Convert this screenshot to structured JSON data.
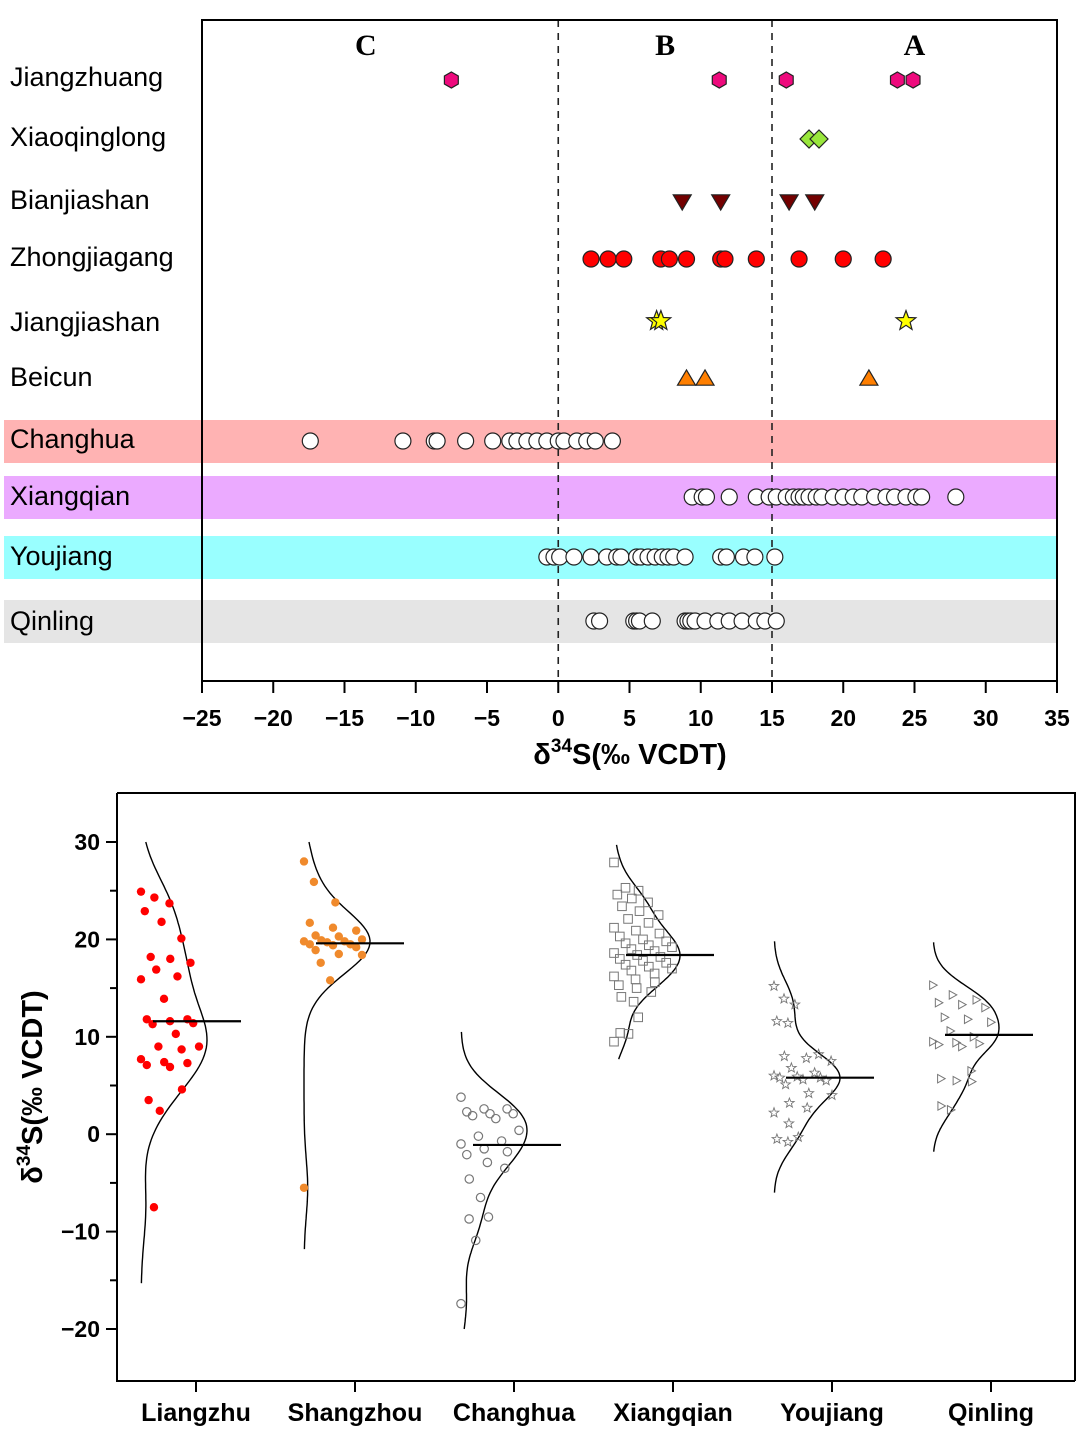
{
  "chart_data": [
    {
      "type": "scatter",
      "title": "",
      "xlabel": "δ34S(‰ VCDT)",
      "xlabel_main": "δ",
      "xlabel_sup": "34",
      "xlabel_rest": "S(‰ VCDT)",
      "ylabel": "",
      "xlim": [
        -25,
        35
      ],
      "x_ticks": [
        -25,
        -20,
        -15,
        -10,
        -5,
        0,
        5,
        10,
        15,
        20,
        25,
        30,
        35
      ],
      "x_tick_labels": [
        "−25",
        "−20",
        "−15",
        "−10",
        "−5",
        "0",
        "5",
        "10",
        "15",
        "20",
        "25",
        "30",
        "35"
      ],
      "reference_lines": [
        0,
        15
      ],
      "zones": [
        {
          "label": "C",
          "x": -13.5
        },
        {
          "label": "B",
          "x": 7.5
        },
        {
          "label": "A",
          "x": 25
        }
      ],
      "series": [
        {
          "name": "Jiangzhuang",
          "marker": "hexagon",
          "color": "#ee0a7d",
          "values": [
            -7.5,
            11.3,
            16.0,
            23.8,
            24.9
          ]
        },
        {
          "name": "Xiaoqinglong",
          "marker": "diamond",
          "color": "#99e63c",
          "values": [
            17.6,
            18.3
          ]
        },
        {
          "name": "Bianjiashan",
          "marker": "triangle-down",
          "color": "#730000",
          "values": [
            8.7,
            11.4,
            16.2,
            18.0
          ]
        },
        {
          "name": "Zhongjiagang",
          "marker": "circle",
          "color": "#ff0000",
          "values": [
            2.3,
            3.5,
            4.6,
            7.2,
            7.8,
            9.0,
            11.4,
            11.7,
            13.9,
            16.9,
            20.0,
            22.8
          ]
        },
        {
          "name": "Jiangjiashan",
          "marker": "star",
          "color": "#ffff00",
          "values": [
            6.9,
            7.2,
            24.4
          ]
        },
        {
          "name": "Beicun",
          "marker": "triangle-up",
          "color": "#ff7f00",
          "values": [
            9.0,
            10.3,
            21.8
          ]
        },
        {
          "name": "Changhua",
          "marker": "open-circle",
          "color": "#ffffff",
          "band": "#ffb3b3",
          "values": [
            -17.4,
            -10.9,
            -8.7,
            -8.5,
            -6.5,
            -4.6,
            -3.4,
            -2.9,
            -2.2,
            -1.5,
            -0.8,
            0.0,
            0.4,
            1.3,
            2.0,
            2.6,
            3.8
          ]
        },
        {
          "name": "Xiangqian",
          "marker": "open-circle",
          "color": "#ffffff",
          "band": "#ebaaff",
          "values": [
            9.4,
            10.1,
            10.4,
            12.0,
            13.9,
            14.8,
            15.3,
            16.0,
            16.5,
            16.9,
            17.2,
            17.6,
            18.1,
            18.5,
            19.3,
            20.0,
            20.7,
            21.3,
            22.2,
            23.0,
            23.6,
            24.4,
            25.1,
            25.5,
            27.9
          ]
        },
        {
          "name": "Youjiang",
          "marker": "open-circle",
          "color": "#ffffff",
          "band": "#99ffff",
          "values": [
            -0.8,
            -0.3,
            0.1,
            1.1,
            2.3,
            3.4,
            4.1,
            4.4,
            5.5,
            5.8,
            6.3,
            6.8,
            7.3,
            7.7,
            8.1,
            8.9,
            11.4,
            11.8,
            13.0,
            13.8,
            15.2
          ]
        },
        {
          "name": "Qinling",
          "marker": "open-circle",
          "color": "#ffffff",
          "band": "#e5e5e5",
          "values": [
            2.5,
            2.9,
            5.3,
            5.5,
            5.7,
            6.6,
            8.9,
            9.1,
            9.3,
            9.6,
            10.3,
            11.2,
            12.0,
            12.9,
            13.9,
            14.5,
            15.3
          ]
        }
      ]
    },
    {
      "type": "scatter",
      "subtype": "half-violin with jittered points",
      "title": "",
      "xlabel": "",
      "ylabel": "δ34S(‰ VCDT)",
      "ylabel_main": "δ",
      "ylabel_sup": "34",
      "ylabel_rest": "S(‰ VCDT)",
      "ylim": [
        -25,
        35
      ],
      "y_ticks": [
        -20,
        -10,
        0,
        10,
        20,
        30
      ],
      "y_tick_labels": [
        "−20",
        "−10",
        "0",
        "10",
        "20",
        "30"
      ],
      "y_minor_ticks": [
        -15,
        -5,
        5,
        15,
        25
      ],
      "categories": [
        "Liangzhu",
        "Shangzhou",
        "Changhua",
        "Xiangqian",
        "Youjiang",
        "Qinling"
      ],
      "series": [
        {
          "name": "Liangzhu",
          "marker": "filled-circle",
          "color": "#ff0000",
          "mean": 11.6,
          "curve_range": [
            -15.3,
            30
          ],
          "curve_peak": 9.5,
          "values": [
            24.9,
            24.3,
            23.7,
            22.9,
            21.8,
            20.1,
            18.2,
            18.0,
            17.6,
            16.9,
            16.2,
            15.9,
            13.9,
            11.8,
            11.8,
            11.6,
            11.4,
            11.3,
            10.3,
            9.0,
            9.0,
            8.7,
            7.7,
            7.4,
            7.3,
            7.1,
            6.9,
            4.6,
            3.5,
            2.4,
            -7.5
          ]
        },
        {
          "name": "Shangzhou",
          "marker": "filled-circle",
          "color": "#f08a2c",
          "mean": 19.6,
          "curve_range": [
            -11.8,
            30
          ],
          "curve_peak": 19.7,
          "values": [
            28.0,
            25.9,
            23.8,
            21.7,
            21.2,
            20.9,
            20.4,
            20.3,
            20.0,
            19.9,
            19.8,
            19.8,
            19.7,
            19.5,
            19.5,
            19.4,
            19.2,
            18.9,
            18.5,
            18.4,
            17.6,
            15.8,
            -5.5
          ]
        },
        {
          "name": "Changhua",
          "marker": "open-circle",
          "color": "#777777",
          "mean": -1.1,
          "curve_range": [
            -20,
            10.5
          ],
          "curve_peak": 1.0,
          "values": [
            3.8,
            2.6,
            2.6,
            2.3,
            2.1,
            2.1,
            1.9,
            1.6,
            0.4,
            -0.2,
            -0.7,
            -1.0,
            -1.5,
            -1.8,
            -2.1,
            -2.9,
            -3.5,
            -4.6,
            -6.5,
            -8.5,
            -8.7,
            -10.9,
            -17.4
          ]
        },
        {
          "name": "Xiangqian",
          "marker": "open-square",
          "color": "#777777",
          "mean": 18.4,
          "curve_range": [
            7.7,
            29.7
          ],
          "curve_peak": 18.3,
          "values": [
            27.9,
            25.3,
            25.0,
            24.6,
            24.2,
            23.8,
            23.4,
            22.9,
            22.5,
            22.1,
            21.7,
            21.2,
            20.9,
            20.6,
            20.3,
            20.0,
            19.8,
            19.6,
            19.4,
            19.2,
            19.0,
            18.8,
            18.6,
            18.4,
            18.2,
            18.0,
            17.8,
            17.6,
            17.4,
            17.2,
            17.0,
            16.8,
            16.5,
            16.2,
            15.9,
            15.6,
            15.3,
            15.0,
            14.6,
            14.1,
            13.6,
            12.0,
            10.4,
            10.3,
            9.5
          ]
        },
        {
          "name": "Youjiang",
          "marker": "open-star",
          "color": "#777777",
          "mean": 5.8,
          "curve_range": [
            -6.0,
            19.8
          ],
          "curve_peak": 5.8,
          "values": [
            15.2,
            13.9,
            13.3,
            11.6,
            11.4,
            8.2,
            8.0,
            7.8,
            7.5,
            6.8,
            6.3,
            6.0,
            5.9,
            5.8,
            5.8,
            5.6,
            5.5,
            5.1,
            4.2,
            4.0,
            3.2,
            2.7,
            2.2,
            1.1,
            -0.3,
            -0.5,
            -0.8
          ]
        },
        {
          "name": "Qinling",
          "marker": "open-triangle-right",
          "color": "#777777",
          "mean": 10.2,
          "curve_range": [
            -1.8,
            19.7
          ],
          "curve_peak": 10.4,
          "values": [
            15.3,
            14.3,
            13.8,
            13.5,
            13.3,
            13.0,
            12.0,
            11.8,
            11.5,
            10.6,
            10.0,
            9.5,
            9.4,
            9.3,
            9.2,
            9.0,
            6.5,
            5.7,
            5.5,
            5.4,
            2.9,
            2.5
          ]
        }
      ]
    }
  ]
}
